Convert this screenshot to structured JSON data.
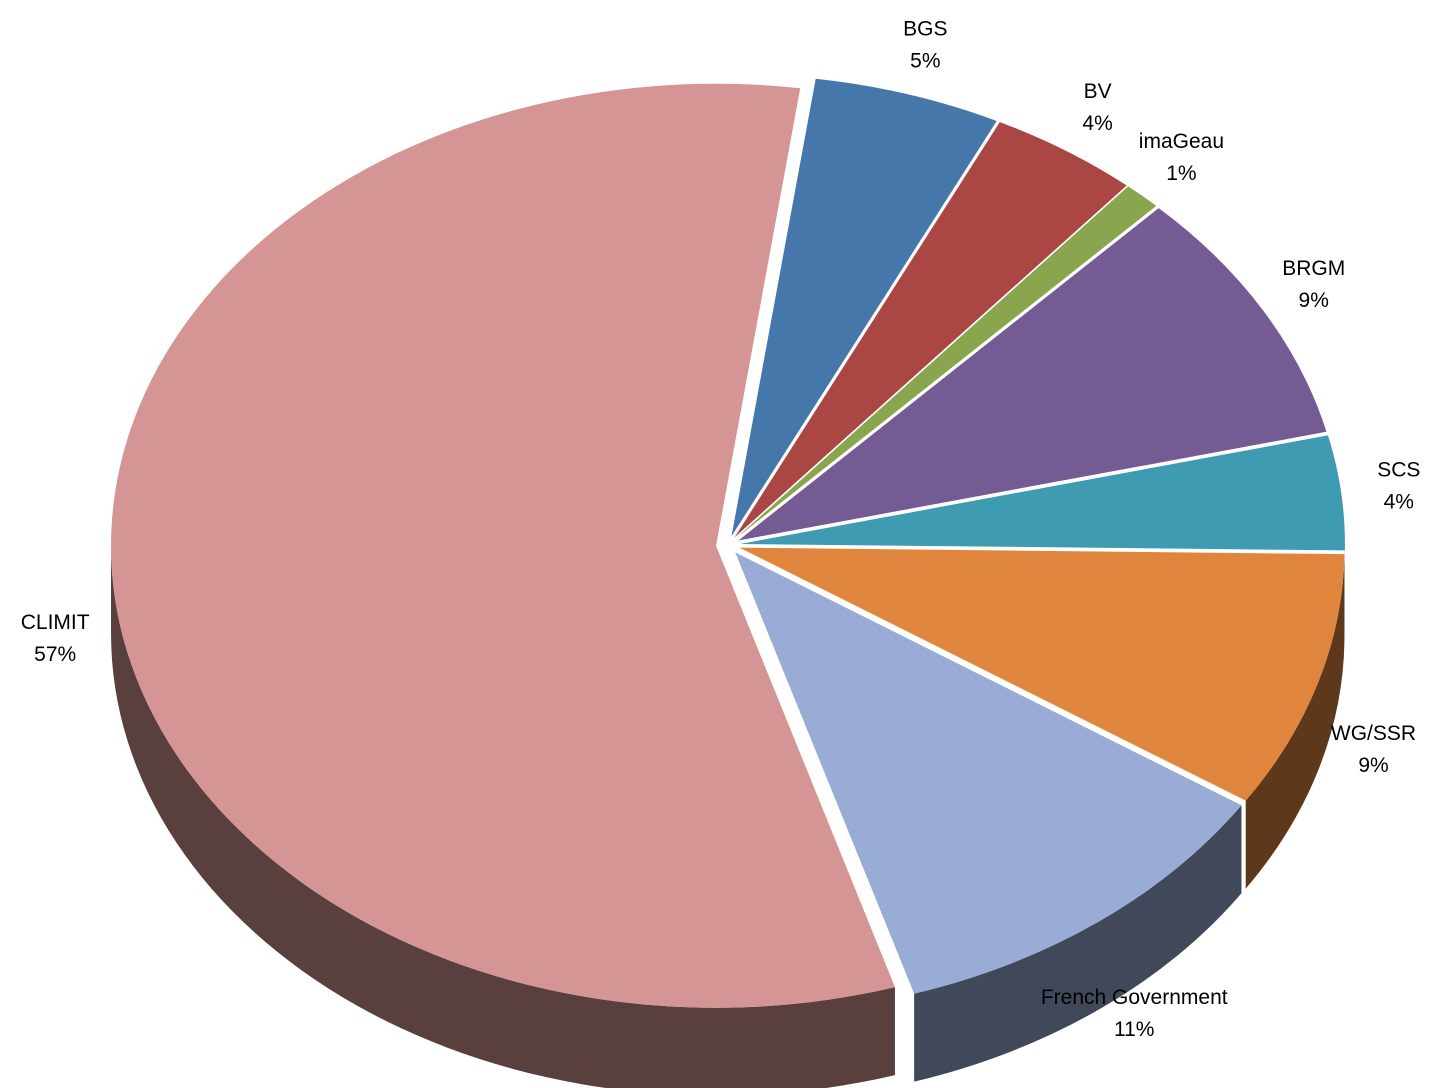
{
  "chart_data": {
    "type": "pie",
    "categories": [
      "BGS",
      "BV",
      "imaGeau",
      "BRGM",
      "SCS",
      "WG/SSR",
      "French Government",
      "CLIMIT"
    ],
    "values": [
      5,
      4,
      1,
      9,
      4,
      9,
      11,
      57
    ],
    "value_labels": [
      "5%",
      "4%",
      "1%",
      "9%",
      "4%",
      "9%",
      "11%",
      "57%"
    ],
    "colors": [
      "#4677ab",
      "#aa4644",
      "#89a54e",
      "#745b93",
      "#3f9bb2",
      "#df853d",
      "#98acd5",
      "#d49594"
    ]
  }
}
